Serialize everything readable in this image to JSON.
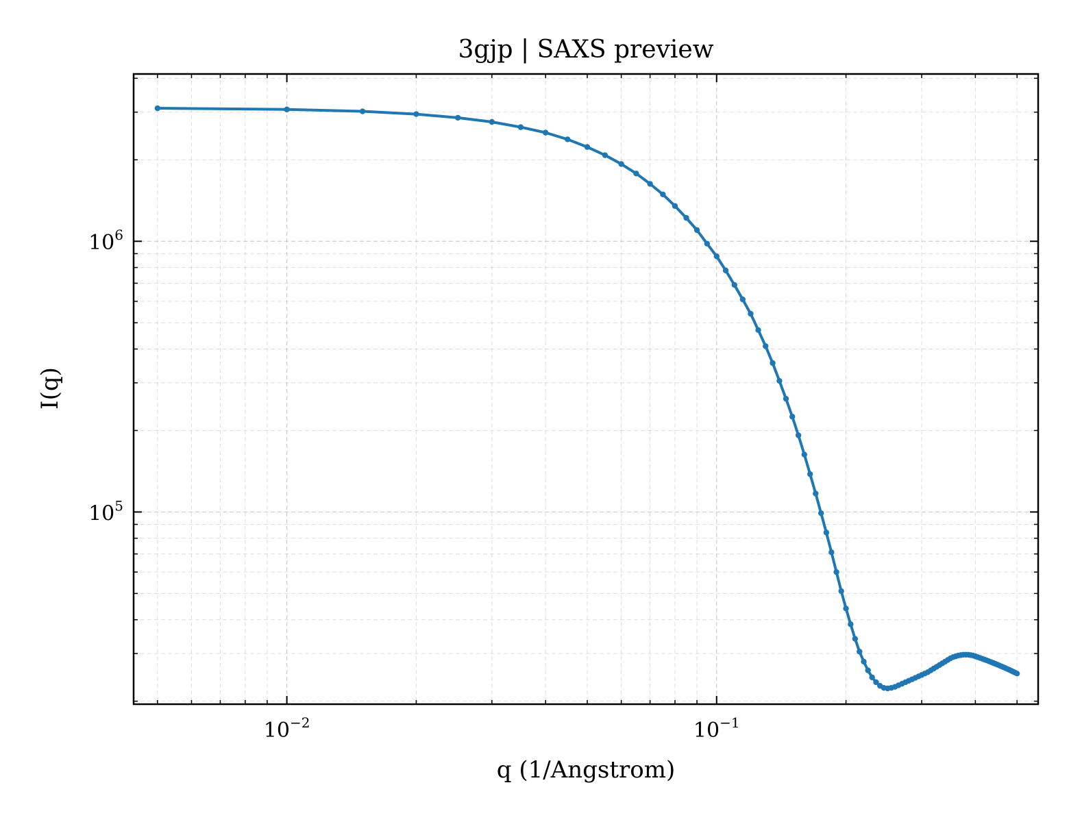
{
  "chart_data": {
    "type": "line",
    "title": "3gjp | SAXS preview",
    "xlabel": "q (1/Angstrom)",
    "ylabel": "I(q)",
    "xscale": "log",
    "yscale": "log",
    "xlim": [
      0.0044,
      0.56
    ],
    "ylim": [
      19500,
      4150000
    ],
    "grid": true,
    "legend": "none",
    "x_ticks": [
      {
        "value": 0.01,
        "base": "10",
        "exp": "−2"
      },
      {
        "value": 0.1,
        "base": "10",
        "exp": "−1"
      }
    ],
    "y_ticks": [
      {
        "value": 100000,
        "base": "10",
        "exp": "5"
      },
      {
        "value": 1000000,
        "base": "10",
        "exp": "6"
      }
    ],
    "color": "#1f77b4",
    "series": [
      {
        "x": [
          0.005,
          0.01,
          0.015,
          0.02,
          0.025,
          0.03,
          0.035,
          0.04,
          0.045,
          0.05,
          0.055,
          0.06,
          0.065,
          0.07,
          0.075,
          0.08,
          0.085,
          0.09,
          0.095,
          0.1,
          0.105,
          0.11,
          0.115,
          0.12,
          0.125,
          0.13,
          0.135,
          0.14,
          0.145,
          0.15,
          0.155,
          0.16,
          0.165,
          0.17,
          0.175,
          0.18,
          0.185,
          0.19,
          0.195,
          0.2,
          0.205,
          0.21,
          0.215,
          0.22,
          0.225,
          0.23,
          0.235,
          0.24,
          0.245,
          0.25,
          0.255,
          0.26,
          0.265,
          0.27,
          0.275,
          0.28,
          0.285,
          0.29,
          0.295,
          0.3,
          0.305,
          0.31,
          0.315,
          0.32,
          0.325,
          0.33,
          0.335,
          0.34,
          0.345,
          0.35,
          0.355,
          0.36,
          0.365,
          0.37,
          0.375,
          0.38,
          0.385,
          0.39,
          0.395,
          0.4,
          0.405,
          0.41,
          0.415,
          0.42,
          0.425,
          0.43,
          0.435,
          0.44,
          0.445,
          0.45,
          0.455,
          0.46,
          0.465,
          0.47,
          0.475,
          0.48,
          0.485,
          0.49,
          0.495,
          0.5
        ],
        "y": [
          3100000,
          3070000,
          3020000,
          2950000,
          2860000,
          2760000,
          2640000,
          2520000,
          2380000,
          2230000,
          2080000,
          1930000,
          1780000,
          1630000,
          1490000,
          1350000,
          1220000,
          1100000,
          980000,
          880000,
          780000,
          690000,
          610000,
          540000,
          470000,
          410000,
          355000,
          305000,
          262000,
          225000,
          192000,
          163000,
          138000,
          117000,
          99000,
          84000,
          71000,
          60000,
          51000,
          44000,
          38500,
          34000,
          30500,
          28000,
          26000,
          24500,
          23500,
          22800,
          22400,
          22300,
          22400,
          22600,
          22900,
          23200,
          23500,
          23800,
          24100,
          24400,
          24700,
          25000,
          25300,
          25600,
          26000,
          26400,
          26800,
          27200,
          27600,
          28000,
          28400,
          28800,
          29100,
          29300,
          29500,
          29600,
          29700,
          29700,
          29700,
          29600,
          29500,
          29300,
          29100,
          28900,
          28700,
          28500,
          28300,
          28100,
          27900,
          27700,
          27500,
          27300,
          27100,
          26900,
          26700,
          26500,
          26300,
          26100,
          25900,
          25700,
          25500,
          25300
        ]
      }
    ]
  }
}
